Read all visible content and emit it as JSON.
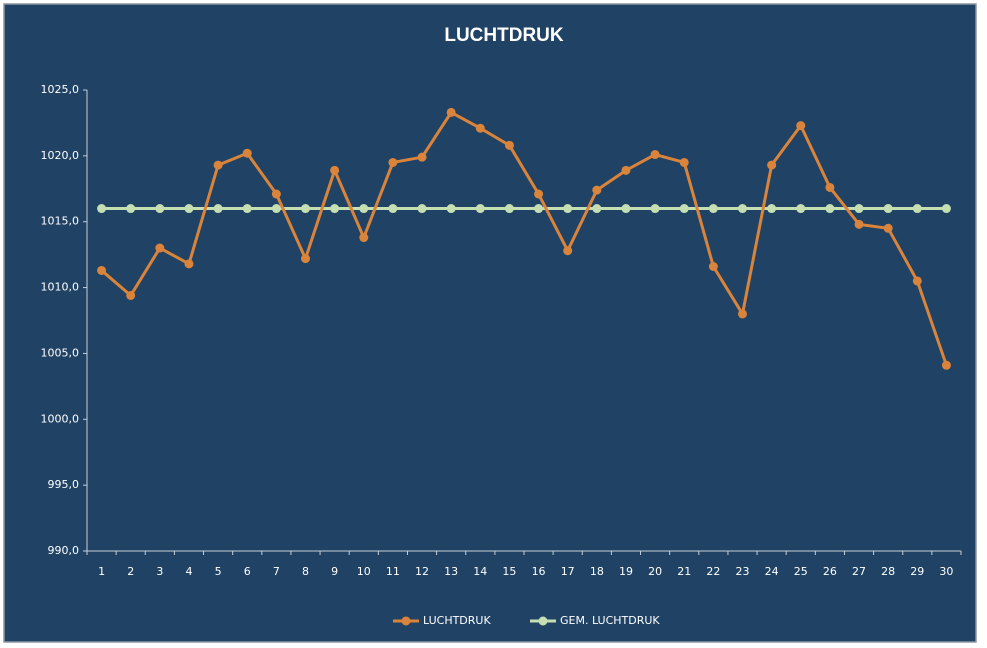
{
  "chart_data": {
    "type": "line",
    "title": "LUCHTDRUK",
    "categories": [
      "1",
      "2",
      "3",
      "4",
      "5",
      "6",
      "7",
      "8",
      "9",
      "10",
      "11",
      "12",
      "13",
      "14",
      "15",
      "16",
      "17",
      "18",
      "19",
      "20",
      "21",
      "22",
      "23",
      "24",
      "25",
      "26",
      "27",
      "28",
      "29",
      "30"
    ],
    "series": [
      {
        "name": "LUCHTDRUK",
        "color": "#d9843a",
        "values": [
          1011.3,
          1009.4,
          1013.0,
          1011.8,
          1019.3,
          1020.2,
          1017.1,
          1012.2,
          1018.9,
          1013.8,
          1019.5,
          1019.9,
          1023.3,
          1022.1,
          1020.8,
          1017.1,
          1012.8,
          1017.4,
          1018.9,
          1020.1,
          1019.5,
          1011.6,
          1008.0,
          1019.3,
          1022.3,
          1017.6,
          1014.8,
          1014.5,
          1010.5,
          1004.1
        ]
      },
      {
        "name": "GEM. LUCHTDRUK",
        "color": "#c5dfb3",
        "values": [
          1016.0,
          1016.0,
          1016.0,
          1016.0,
          1016.0,
          1016.0,
          1016.0,
          1016.0,
          1016.0,
          1016.0,
          1016.0,
          1016.0,
          1016.0,
          1016.0,
          1016.0,
          1016.0,
          1016.0,
          1016.0,
          1016.0,
          1016.0,
          1016.0,
          1016.0,
          1016.0,
          1016.0,
          1016.0,
          1016.0,
          1016.0,
          1016.0,
          1016.0,
          1016.0
        ]
      }
    ],
    "ylim": [
      990,
      1025
    ],
    "yticks": [
      {
        "value": 990,
        "label": "990,0"
      },
      {
        "value": 995,
        "label": "995,0"
      },
      {
        "value": 1000,
        "label": "1000,0"
      },
      {
        "value": 1005,
        "label": "1005,0"
      },
      {
        "value": 1010,
        "label": "1010,0"
      },
      {
        "value": 1015,
        "label": "1015,0"
      },
      {
        "value": 1020,
        "label": "1020,0"
      },
      {
        "value": 1025,
        "label": "1025,0"
      }
    ],
    "grid": false,
    "legend": "bottom"
  }
}
